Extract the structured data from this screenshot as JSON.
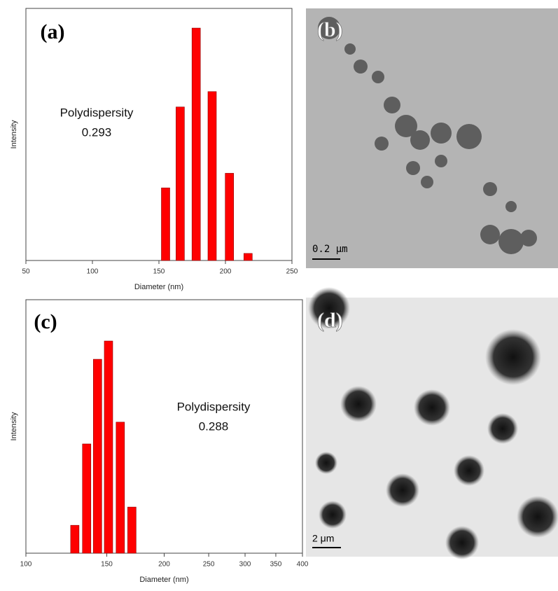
{
  "chart_data": [
    {
      "type": "bar",
      "label": "(a)",
      "x": [
        155,
        166,
        178,
        190,
        203,
        217
      ],
      "values": [
        28.8,
        60.9,
        92.2,
        67,
        34.6,
        2.8
      ],
      "color": "#ff0000",
      "xlim": [
        50,
        250
      ],
      "xticks": [
        50,
        100,
        150,
        200,
        250
      ],
      "ylim": [
        0,
        100
      ],
      "xlabel": "Diameter (nm)",
      "ylabel": "Intensity",
      "annotations": [
        "Polydispersity",
        "0.293"
      ]
    },
    {
      "type": "bar",
      "label": "(c)",
      "x": [
        127.8,
        135.6,
        143.2,
        151.3,
        160.5,
        170.1
      ],
      "values": [
        11.0,
        43.1,
        76.5,
        83.7,
        51.7,
        18.2
      ],
      "color": "#ff0000",
      "xscale": "log",
      "xlim": [
        100,
        400
      ],
      "xticks": [
        100,
        150,
        200,
        250,
        300,
        350,
        400
      ],
      "ylim": [
        0,
        100
      ],
      "xlabel": "Diameter (nm)",
      "ylabel": "Intensity",
      "annotations": [
        "Polydispersity",
        "0.288"
      ]
    }
  ],
  "images": [
    {
      "label": "(b)",
      "scale_bar": "0.2 μm"
    },
    {
      "label": "(d)",
      "scale_bar": "2 μm"
    }
  ]
}
